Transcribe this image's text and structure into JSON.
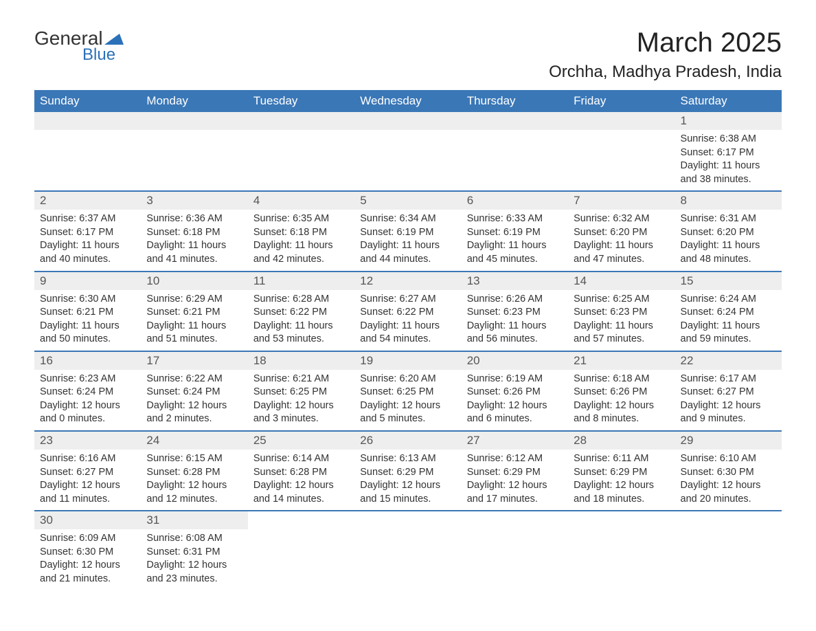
{
  "logo": {
    "word1": "General",
    "word2": "Blue",
    "text_color": "#333333",
    "accent_color": "#2b71b8"
  },
  "title": "March 2025",
  "location": "Orchha, Madhya Pradesh, India",
  "colors": {
    "header_bg": "#3a77b7",
    "header_text": "#ffffff",
    "daynum_bg": "#eeeeee",
    "daynum_text": "#555555",
    "body_text": "#333333",
    "row_border": "#3a77b7",
    "page_bg": "#ffffff"
  },
  "calendar": {
    "type": "table",
    "columns": [
      "Sunday",
      "Monday",
      "Tuesday",
      "Wednesday",
      "Thursday",
      "Friday",
      "Saturday"
    ],
    "column_fontsize": 17,
    "body_fontsize": 14.5,
    "weeks": [
      [
        null,
        null,
        null,
        null,
        null,
        null,
        {
          "n": "1",
          "sr": "Sunrise: 6:38 AM",
          "ss": "Sunset: 6:17 PM",
          "d1": "Daylight: 11 hours",
          "d2": "and 38 minutes."
        }
      ],
      [
        {
          "n": "2",
          "sr": "Sunrise: 6:37 AM",
          "ss": "Sunset: 6:17 PM",
          "d1": "Daylight: 11 hours",
          "d2": "and 40 minutes."
        },
        {
          "n": "3",
          "sr": "Sunrise: 6:36 AM",
          "ss": "Sunset: 6:18 PM",
          "d1": "Daylight: 11 hours",
          "d2": "and 41 minutes."
        },
        {
          "n": "4",
          "sr": "Sunrise: 6:35 AM",
          "ss": "Sunset: 6:18 PM",
          "d1": "Daylight: 11 hours",
          "d2": "and 42 minutes."
        },
        {
          "n": "5",
          "sr": "Sunrise: 6:34 AM",
          "ss": "Sunset: 6:19 PM",
          "d1": "Daylight: 11 hours",
          "d2": "and 44 minutes."
        },
        {
          "n": "6",
          "sr": "Sunrise: 6:33 AM",
          "ss": "Sunset: 6:19 PM",
          "d1": "Daylight: 11 hours",
          "d2": "and 45 minutes."
        },
        {
          "n": "7",
          "sr": "Sunrise: 6:32 AM",
          "ss": "Sunset: 6:20 PM",
          "d1": "Daylight: 11 hours",
          "d2": "and 47 minutes."
        },
        {
          "n": "8",
          "sr": "Sunrise: 6:31 AM",
          "ss": "Sunset: 6:20 PM",
          "d1": "Daylight: 11 hours",
          "d2": "and 48 minutes."
        }
      ],
      [
        {
          "n": "9",
          "sr": "Sunrise: 6:30 AM",
          "ss": "Sunset: 6:21 PM",
          "d1": "Daylight: 11 hours",
          "d2": "and 50 minutes."
        },
        {
          "n": "10",
          "sr": "Sunrise: 6:29 AM",
          "ss": "Sunset: 6:21 PM",
          "d1": "Daylight: 11 hours",
          "d2": "and 51 minutes."
        },
        {
          "n": "11",
          "sr": "Sunrise: 6:28 AM",
          "ss": "Sunset: 6:22 PM",
          "d1": "Daylight: 11 hours",
          "d2": "and 53 minutes."
        },
        {
          "n": "12",
          "sr": "Sunrise: 6:27 AM",
          "ss": "Sunset: 6:22 PM",
          "d1": "Daylight: 11 hours",
          "d2": "and 54 minutes."
        },
        {
          "n": "13",
          "sr": "Sunrise: 6:26 AM",
          "ss": "Sunset: 6:23 PM",
          "d1": "Daylight: 11 hours",
          "d2": "and 56 minutes."
        },
        {
          "n": "14",
          "sr": "Sunrise: 6:25 AM",
          "ss": "Sunset: 6:23 PM",
          "d1": "Daylight: 11 hours",
          "d2": "and 57 minutes."
        },
        {
          "n": "15",
          "sr": "Sunrise: 6:24 AM",
          "ss": "Sunset: 6:24 PM",
          "d1": "Daylight: 11 hours",
          "d2": "and 59 minutes."
        }
      ],
      [
        {
          "n": "16",
          "sr": "Sunrise: 6:23 AM",
          "ss": "Sunset: 6:24 PM",
          "d1": "Daylight: 12 hours",
          "d2": "and 0 minutes."
        },
        {
          "n": "17",
          "sr": "Sunrise: 6:22 AM",
          "ss": "Sunset: 6:24 PM",
          "d1": "Daylight: 12 hours",
          "d2": "and 2 minutes."
        },
        {
          "n": "18",
          "sr": "Sunrise: 6:21 AM",
          "ss": "Sunset: 6:25 PM",
          "d1": "Daylight: 12 hours",
          "d2": "and 3 minutes."
        },
        {
          "n": "19",
          "sr": "Sunrise: 6:20 AM",
          "ss": "Sunset: 6:25 PM",
          "d1": "Daylight: 12 hours",
          "d2": "and 5 minutes."
        },
        {
          "n": "20",
          "sr": "Sunrise: 6:19 AM",
          "ss": "Sunset: 6:26 PM",
          "d1": "Daylight: 12 hours",
          "d2": "and 6 minutes."
        },
        {
          "n": "21",
          "sr": "Sunrise: 6:18 AM",
          "ss": "Sunset: 6:26 PM",
          "d1": "Daylight: 12 hours",
          "d2": "and 8 minutes."
        },
        {
          "n": "22",
          "sr": "Sunrise: 6:17 AM",
          "ss": "Sunset: 6:27 PM",
          "d1": "Daylight: 12 hours",
          "d2": "and 9 minutes."
        }
      ],
      [
        {
          "n": "23",
          "sr": "Sunrise: 6:16 AM",
          "ss": "Sunset: 6:27 PM",
          "d1": "Daylight: 12 hours",
          "d2": "and 11 minutes."
        },
        {
          "n": "24",
          "sr": "Sunrise: 6:15 AM",
          "ss": "Sunset: 6:28 PM",
          "d1": "Daylight: 12 hours",
          "d2": "and 12 minutes."
        },
        {
          "n": "25",
          "sr": "Sunrise: 6:14 AM",
          "ss": "Sunset: 6:28 PM",
          "d1": "Daylight: 12 hours",
          "d2": "and 14 minutes."
        },
        {
          "n": "26",
          "sr": "Sunrise: 6:13 AM",
          "ss": "Sunset: 6:29 PM",
          "d1": "Daylight: 12 hours",
          "d2": "and 15 minutes."
        },
        {
          "n": "27",
          "sr": "Sunrise: 6:12 AM",
          "ss": "Sunset: 6:29 PM",
          "d1": "Daylight: 12 hours",
          "d2": "and 17 minutes."
        },
        {
          "n": "28",
          "sr": "Sunrise: 6:11 AM",
          "ss": "Sunset: 6:29 PM",
          "d1": "Daylight: 12 hours",
          "d2": "and 18 minutes."
        },
        {
          "n": "29",
          "sr": "Sunrise: 6:10 AM",
          "ss": "Sunset: 6:30 PM",
          "d1": "Daylight: 12 hours",
          "d2": "and 20 minutes."
        }
      ],
      [
        {
          "n": "30",
          "sr": "Sunrise: 6:09 AM",
          "ss": "Sunset: 6:30 PM",
          "d1": "Daylight: 12 hours",
          "d2": "and 21 minutes."
        },
        {
          "n": "31",
          "sr": "Sunrise: 6:08 AM",
          "ss": "Sunset: 6:31 PM",
          "d1": "Daylight: 12 hours",
          "d2": "and 23 minutes."
        },
        null,
        null,
        null,
        null,
        null
      ]
    ]
  }
}
